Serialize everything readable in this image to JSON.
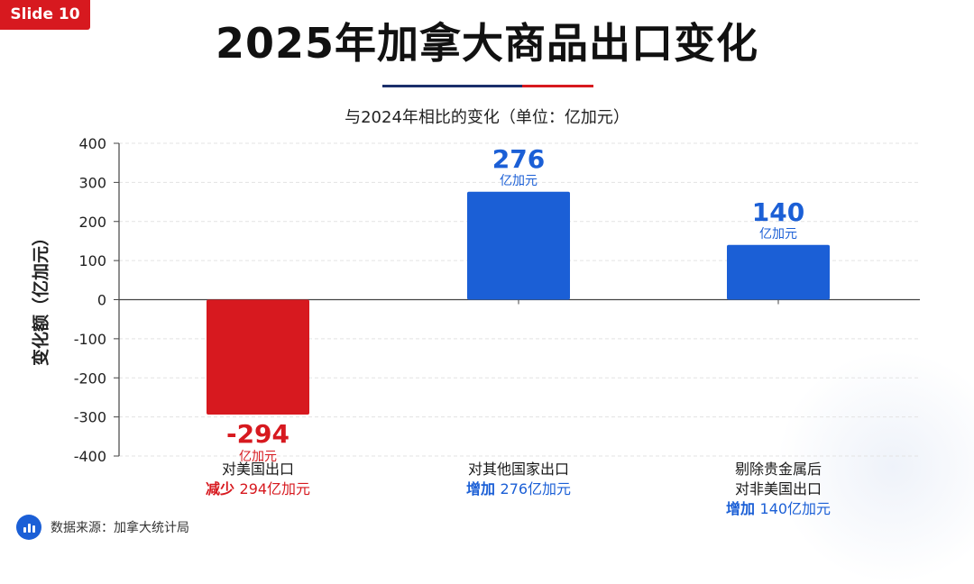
{
  "slide_badge": "Slide 10",
  "title": "2025年加拿大商品出口变化",
  "footer": {
    "source": "数据来源：加拿大统计局",
    "icon": "bar-chart-icon"
  },
  "colors": {
    "negative": "#d7191f",
    "positive": "#1b5fd6",
    "text": "#222222",
    "badge": "#d7191f",
    "rule_navy": "#1b2f6b"
  },
  "chart_data": {
    "type": "bar",
    "title": "与2024年相比的变化（单位：亿加元）",
    "ylabel": "变化额（亿加元）",
    "ylim": [
      -400,
      400
    ],
    "yticks": [
      400,
      300,
      200,
      100,
      0,
      -100,
      -200,
      -300,
      -400
    ],
    "grid": true,
    "categories": [
      {
        "lines": [
          "对美国出口"
        ],
        "note_prefix": "减少",
        "note_value": "294亿加元"
      },
      {
        "lines": [
          "对其他国家出口"
        ],
        "note_prefix": "增加",
        "note_value": "276亿加元"
      },
      {
        "lines": [
          "剔除贵金属后",
          "对非美国出口"
        ],
        "note_prefix": "增加",
        "note_value": "140亿加元"
      }
    ],
    "values": [
      -294,
      276,
      140
    ],
    "value_labels": [
      "-294",
      "276",
      "140"
    ],
    "unit_label": "亿加元"
  }
}
